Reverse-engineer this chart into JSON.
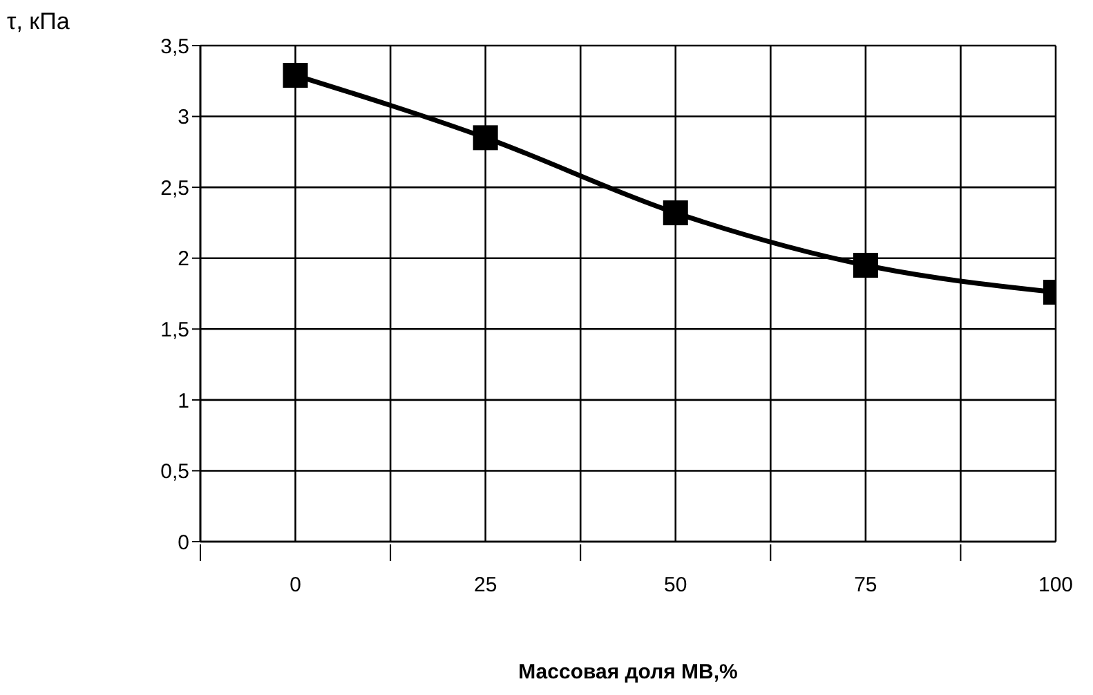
{
  "chart_data": {
    "type": "line",
    "xlabel": "Массовая доля МВ,%",
    "ylabel": "τ, кПа",
    "x": [
      0,
      25,
      50,
      75,
      100
    ],
    "series": [
      {
        "color": "#000000",
        "values": [
          3.29,
          2.85,
          2.32,
          1.95,
          1.76
        ]
      }
    ],
    "xlim": [
      -12.5,
      100
    ],
    "xticks": [
      {
        "value": -12.5,
        "label": null
      },
      0,
      {
        "value": 12.5,
        "label": null
      },
      25,
      {
        "value": 37.5,
        "label": null
      },
      50,
      {
        "value": 62.5,
        "label": null
      },
      75,
      {
        "value": 87.5,
        "label": null
      },
      100
    ],
    "ylim": [
      0,
      3.5
    ],
    "yticks": [
      0,
      {
        "value": 0.5,
        "label": "0,5"
      },
      1,
      {
        "value": 1.5,
        "label": "1,5"
      },
      2,
      {
        "value": 2.5,
        "label": "2,5"
      },
      3,
      {
        "value": 3.5,
        "label": "3,5"
      }
    ],
    "grid": true,
    "legend": false,
    "marker": "square",
    "line_style": "solid"
  }
}
